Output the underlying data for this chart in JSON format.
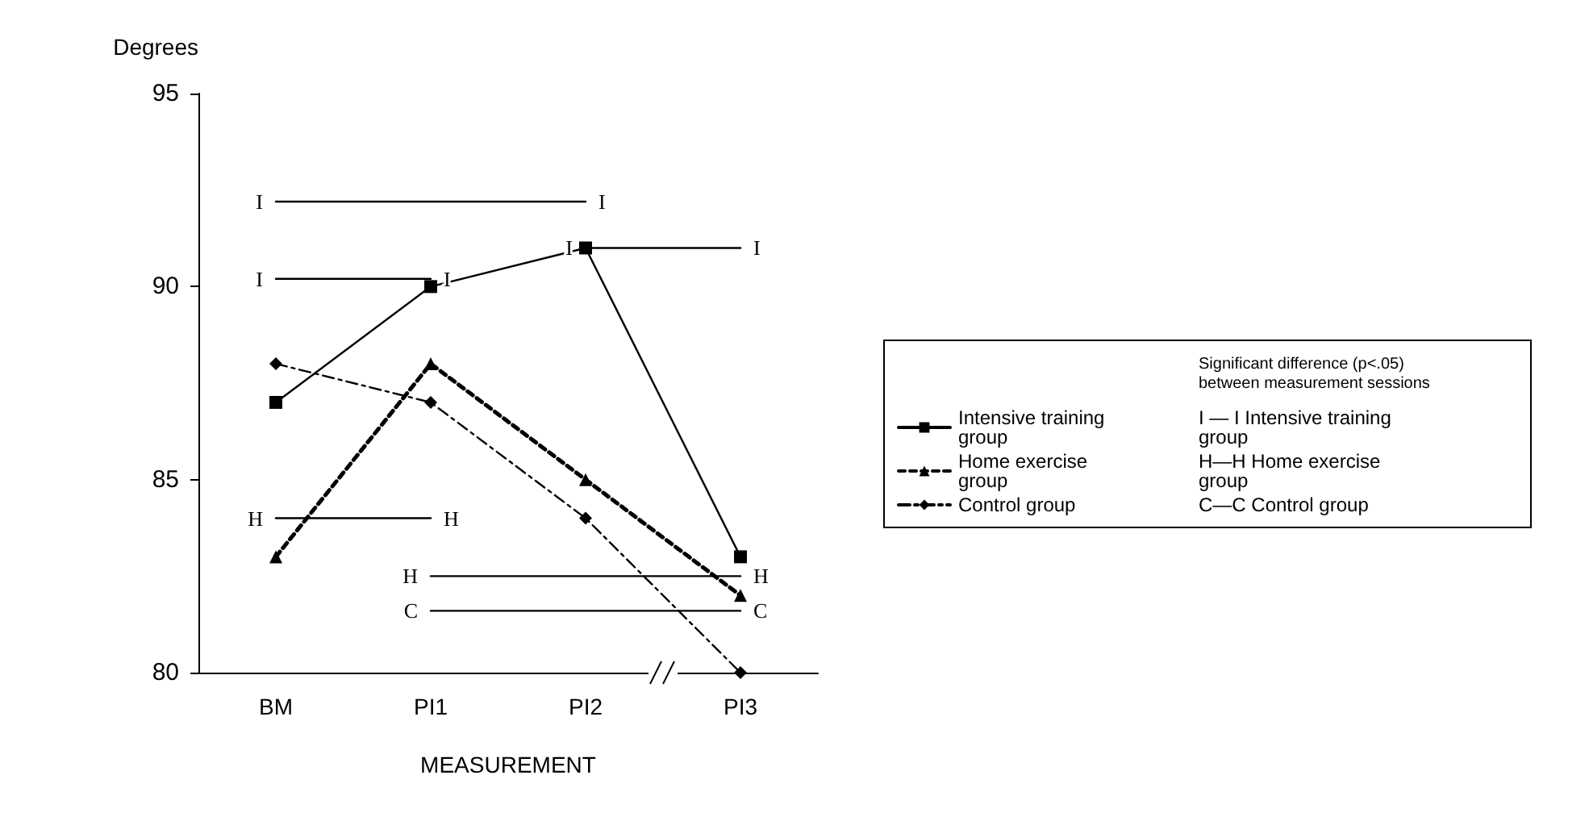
{
  "chart_data": {
    "type": "line",
    "ylabel": "Degrees",
    "xlabel": "MEASUREMENT",
    "categories": [
      "BM",
      "PI1",
      "PI2",
      "PI3"
    ],
    "ylim": [
      80,
      95
    ],
    "yticks": [
      80,
      85,
      90,
      95
    ],
    "grid": false,
    "legend": "right",
    "series": [
      {
        "name": "Intensive training group",
        "color": "#000000",
        "values": [
          87,
          90,
          91,
          83
        ],
        "marker": "square",
        "line_style": "solid"
      },
      {
        "name": "Home exercise group",
        "color": "#000000",
        "values": [
          83,
          88,
          85,
          82
        ],
        "marker": "triangle",
        "line_style": "dotted"
      },
      {
        "name": "Control group",
        "color": "#000000",
        "values": [
          88,
          87,
          84,
          80
        ],
        "marker": "diamond",
        "line_style": "dashed"
      },
      {
        "color": "#000000",
        "values": [
          92.2,
          92.2,
          92.2,
          null
        ],
        "marker": "none",
        "line_style": "solid",
        "value_labels": [
          "I",
          null,
          "I",
          null
        ]
      },
      {
        "color": "#000000",
        "values": [
          90.2,
          90.2,
          null,
          null
        ],
        "marker": "none",
        "line_style": "solid",
        "value_labels": [
          "I",
          "I",
          null,
          null
        ]
      },
      {
        "color": "#000000",
        "values": [
          null,
          null,
          91,
          91
        ],
        "marker": "none",
        "line_style": "solid",
        "value_labels": [
          null,
          null,
          "I",
          "I"
        ]
      },
      {
        "color": "#000000",
        "values": [
          84,
          84,
          null,
          null
        ],
        "marker": "none",
        "line_style": "solid",
        "value_labels": [
          "H",
          "H",
          null,
          null
        ]
      },
      {
        "color": "#000000",
        "values": [
          null,
          82.5,
          82.5,
          82.5
        ],
        "marker": "none",
        "line_style": "solid",
        "value_labels": [
          null,
          "H",
          null,
          "H"
        ]
      },
      {
        "color": "#000000",
        "values": [
          null,
          81.6,
          81.6,
          81.6
        ],
        "marker": "none",
        "line_style": "solid",
        "value_labels": [
          null,
          "C",
          null,
          "C"
        ]
      }
    ],
    "annotations": [
      "Significant difference (p<.05)\nbetween measurement sessions",
      "I — I Intensive training\ngroup",
      "H—H Home exercise\ngroup",
      "C—C Control group"
    ]
  }
}
